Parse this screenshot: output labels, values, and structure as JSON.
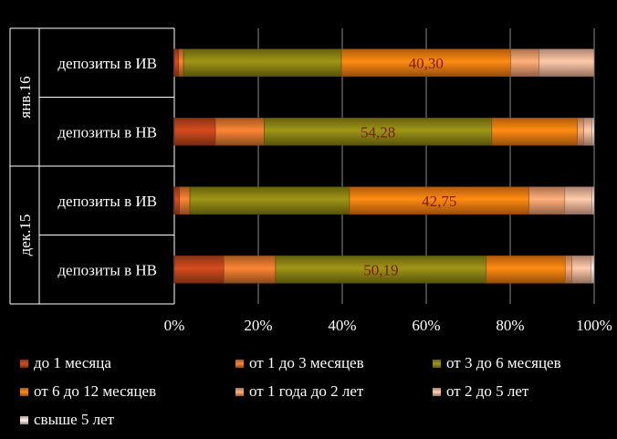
{
  "chart_data": {
    "type": "bar",
    "orientation": "horizontal",
    "stacked": "percent",
    "groups": [
      "янв.16",
      "дек.15"
    ],
    "categories": [
      "депозиты в ИВ",
      "депозиты в НВ",
      "депозиты в ИВ",
      "депозиты в НВ"
    ],
    "category_groups": [
      "янв.16",
      "янв.16",
      "дек.15",
      "дек.15"
    ],
    "series": [
      {
        "name": "до 1 месяца",
        "color": "#c0451c",
        "values": [
          1.0,
          9.8,
          1.2,
          11.8
        ]
      },
      {
        "name": "от 1 до 3 месяцев",
        "color": "#e2782e",
        "values": [
          1.2,
          11.6,
          2.5,
          12.3
        ]
      },
      {
        "name": "от 3 до 6 месяцев",
        "color": "#8e8614",
        "values": [
          37.6,
          54.28,
          38.0,
          50.19
        ]
      },
      {
        "name": "от 6 до 12 месяцев",
        "color": "#f37d10",
        "values": [
          40.3,
          20.4,
          42.75,
          18.8
        ]
      },
      {
        "name": "от 1 года до 2 лет",
        "color": "#ee9d6d",
        "values": [
          6.8,
          1.5,
          8.5,
          1.6
        ]
      },
      {
        "name": "от 2 до 5 лет",
        "color": "#f4b69a",
        "values": [
          13.1,
          2.0,
          6.5,
          4.6
        ]
      },
      {
        "name": "свыше 5 лет",
        "color": "#f8dcd2",
        "values": [
          0.0,
          0.5,
          0.5,
          0.7
        ]
      }
    ],
    "data_labels": [
      {
        "bar": 0,
        "series": 3,
        "text": "40,30"
      },
      {
        "bar": 1,
        "series": 2,
        "text": "54,28"
      },
      {
        "bar": 2,
        "series": 3,
        "text": "42,75"
      },
      {
        "bar": 3,
        "series": 2,
        "text": "50,19"
      }
    ],
    "x_ticks": [
      "0%",
      "20%",
      "40%",
      "60%",
      "80%",
      "100%"
    ],
    "xlim": [
      0,
      100
    ],
    "grid": true,
    "legend_position": "bottom",
    "label_color": "#7a1a12"
  }
}
